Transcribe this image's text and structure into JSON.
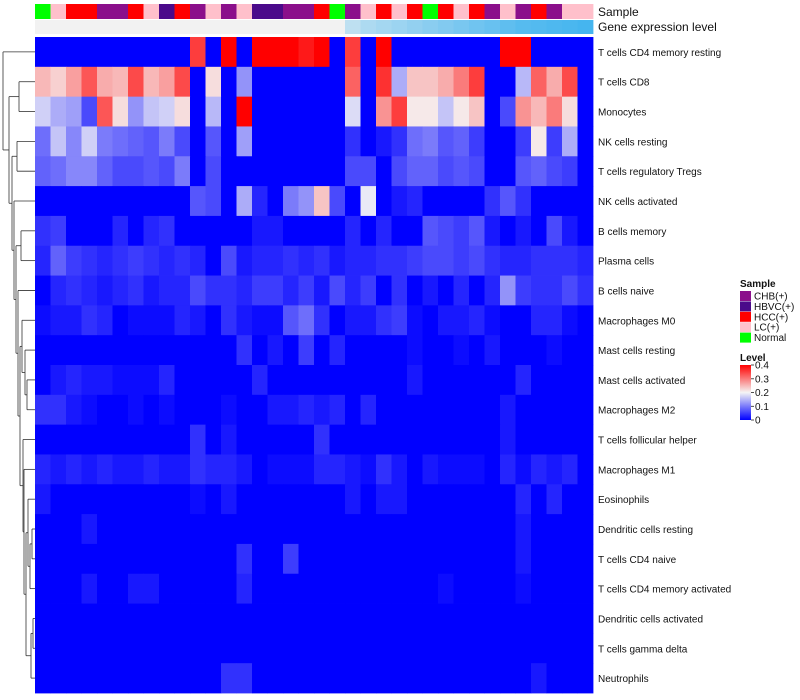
{
  "chart_data": {
    "type": "heatmap",
    "annotation_labels": {
      "sample": "Sample",
      "gene": "Gene expression level"
    },
    "rows": [
      "T cells CD4 memory resting",
      "T cells CD8",
      "Monocytes",
      "NK cells resting",
      "T cells regulatory  Tregs",
      "NK cells activated",
      "B cells memory",
      "Plasma cells",
      "B cells naive",
      "Macrophages M0",
      "Mast cells resting",
      "Mast cells activated",
      "Macrophages M2",
      "T cells follicular helper",
      "Macrophages M1",
      "Eosinophils",
      "Dendritic cells resting",
      "T cells CD4 naive",
      "T cells CD4 memory activated",
      "Dendritic cells activated",
      "T cells gamma delta",
      "Neutrophils"
    ],
    "sample_groups": [
      "Normal",
      "LC(+)",
      "HCC(+)",
      "HCC(+)",
      "CHB(+)",
      "CHB(+)",
      "HCC(+)",
      "LC(+)",
      "HBVC(+)",
      "HCC(+)",
      "CHB(+)",
      "LC(+)",
      "CHB(+)",
      "LC(+)",
      "HBVC(+)",
      "HBVC(+)",
      "CHB(+)",
      "CHB(+)",
      "HCC(+)",
      "Normal",
      "CHB(+)",
      "LC(+)",
      "HCC(+)",
      "LC(+)",
      "HCC(+)",
      "Normal",
      "HCC(+)",
      "LC(+)",
      "HCC(+)",
      "CHB(+)",
      "LC(+)",
      "CHB(+)",
      "HCC(+)",
      "CHB(+)",
      "LC(+)",
      "LC(+)"
    ],
    "gene_expression_level": [
      0,
      0,
      0,
      0,
      0,
      0,
      0,
      0,
      0,
      0,
      0,
      0,
      0,
      0,
      0,
      0,
      0,
      0,
      0,
      0,
      0.3,
      0.4,
      0.45,
      0.5,
      0.55,
      0.6,
      0.65,
      0.7,
      0.75,
      0.8,
      0.85,
      0.9,
      0.92,
      0.95,
      0.97,
      1.0
    ],
    "values": [
      [
        0.0,
        0.0,
        0.0,
        0.0,
        0.0,
        0.0,
        0.0,
        0.0,
        0.0,
        0.0,
        0.35,
        0.0,
        0.4,
        0.0,
        0.4,
        0.4,
        0.4,
        0.38,
        0.4,
        0.0,
        0.35,
        0.0,
        0.4,
        0.0,
        0.0,
        0.0,
        0.0,
        0.0,
        0.0,
        0.0,
        0.4,
        0.4,
        0.0,
        0.0,
        0.0,
        0.0
      ],
      [
        0.25,
        0.23,
        0.27,
        0.33,
        0.26,
        0.25,
        0.34,
        0.25,
        0.27,
        0.34,
        0.0,
        0.22,
        0.0,
        0.12,
        0.0,
        0.0,
        0.0,
        0.0,
        0.0,
        0.0,
        0.32,
        0.0,
        0.36,
        0.14,
        0.24,
        0.24,
        0.26,
        0.3,
        0.35,
        0.0,
        0.0,
        0.15,
        0.32,
        0.26,
        0.34,
        0.0
      ],
      [
        0.17,
        0.14,
        0.13,
        0.06,
        0.33,
        0.22,
        0.12,
        0.16,
        0.17,
        0.22,
        0.0,
        0.15,
        0.0,
        0.4,
        0.0,
        0.0,
        0.0,
        0.0,
        0.0,
        0.0,
        0.18,
        0.0,
        0.28,
        0.35,
        0.21,
        0.21,
        0.16,
        0.21,
        0.24,
        0.0,
        0.06,
        0.28,
        0.25,
        0.3,
        0.22,
        0.0
      ],
      [
        0.09,
        0.16,
        0.11,
        0.17,
        0.1,
        0.09,
        0.08,
        0.07,
        0.1,
        0.06,
        0.0,
        0.07,
        0.0,
        0.13,
        0.0,
        0.0,
        0.0,
        0.0,
        0.0,
        0.0,
        0.04,
        0.0,
        0.02,
        0.04,
        0.09,
        0.1,
        0.07,
        0.08,
        0.05,
        0.0,
        0.0,
        0.05,
        0.21,
        0.05,
        0.14,
        0.0
      ],
      [
        0.08,
        0.09,
        0.11,
        0.11,
        0.08,
        0.06,
        0.06,
        0.07,
        0.06,
        0.1,
        0.0,
        0.06,
        0.0,
        0.0,
        0.0,
        0.0,
        0.0,
        0.0,
        0.0,
        0.0,
        0.06,
        0.06,
        0.0,
        0.06,
        0.08,
        0.08,
        0.06,
        0.07,
        0.06,
        0.0,
        0.0,
        0.07,
        0.08,
        0.06,
        0.05,
        0.0
      ],
      [
        0.0,
        0.0,
        0.0,
        0.0,
        0.0,
        0.0,
        0.0,
        0.0,
        0.0,
        0.0,
        0.07,
        0.06,
        0.0,
        0.14,
        0.03,
        0.0,
        0.1,
        0.12,
        0.24,
        0.06,
        0.0,
        0.19,
        0.0,
        0.02,
        0.03,
        0.0,
        0.0,
        0.0,
        0.0,
        0.04,
        0.07,
        0.04,
        0.0,
        0.0,
        0.0,
        0.0
      ],
      [
        0.04,
        0.05,
        0.0,
        0.0,
        0.0,
        0.03,
        0.0,
        0.03,
        0.04,
        0.0,
        0.0,
        0.0,
        0.0,
        0.0,
        0.02,
        0.02,
        0.0,
        0.0,
        0.0,
        0.0,
        0.03,
        0.0,
        0.03,
        0.0,
        0.0,
        0.07,
        0.06,
        0.05,
        0.07,
        0.02,
        0.0,
        0.02,
        0.0,
        0.06,
        0.02,
        0.0
      ],
      [
        0.03,
        0.08,
        0.05,
        0.04,
        0.03,
        0.04,
        0.05,
        0.04,
        0.03,
        0.04,
        0.03,
        0.0,
        0.06,
        0.02,
        0.03,
        0.03,
        0.04,
        0.03,
        0.04,
        0.02,
        0.03,
        0.03,
        0.04,
        0.04,
        0.05,
        0.06,
        0.06,
        0.05,
        0.06,
        0.04,
        0.03,
        0.03,
        0.04,
        0.04,
        0.04,
        0.03
      ],
      [
        0.0,
        0.03,
        0.04,
        0.03,
        0.02,
        0.03,
        0.04,
        0.02,
        0.03,
        0.03,
        0.06,
        0.04,
        0.04,
        0.03,
        0.05,
        0.05,
        0.03,
        0.05,
        0.02,
        0.06,
        0.03,
        0.05,
        0.0,
        0.04,
        0.0,
        0.02,
        0.0,
        0.03,
        0.0,
        0.03,
        0.12,
        0.05,
        0.04,
        0.04,
        0.06,
        0.04
      ],
      [
        0.01,
        0.02,
        0.02,
        0.04,
        0.03,
        0.0,
        0.01,
        0.01,
        0.01,
        0.03,
        0.02,
        0.0,
        0.04,
        0.02,
        0.01,
        0.01,
        0.07,
        0.09,
        0.04,
        0.0,
        0.02,
        0.02,
        0.04,
        0.05,
        0.01,
        0.0,
        0.02,
        0.02,
        0.03,
        0.01,
        0.0,
        0.0,
        0.03,
        0.03,
        0.01,
        0.0
      ],
      [
        0.0,
        0.0,
        0.0,
        0.0,
        0.0,
        0.0,
        0.0,
        0.0,
        0.0,
        0.0,
        0.0,
        0.0,
        0.0,
        0.04,
        0.0,
        0.02,
        0.0,
        0.05,
        0.0,
        0.03,
        0.0,
        0.0,
        0.0,
        0.0,
        0.01,
        0.0,
        0.0,
        0.01,
        0.0,
        0.02,
        0.0,
        0.0,
        0.0,
        0.01,
        0.0,
        0.0
      ],
      [
        0.0,
        0.02,
        0.03,
        0.02,
        0.02,
        0.01,
        0.01,
        0.01,
        0.03,
        0.0,
        0.0,
        0.0,
        0.0,
        0.0,
        0.03,
        0.0,
        0.0,
        0.0,
        0.0,
        0.0,
        0.0,
        0.0,
        0.0,
        0.0,
        0.02,
        0.0,
        0.0,
        0.0,
        0.0,
        0.0,
        0.0,
        0.03,
        0.0,
        0.0,
        0.0,
        0.0
      ],
      [
        0.04,
        0.04,
        0.02,
        0.01,
        0.0,
        0.0,
        0.01,
        0.0,
        0.01,
        0.0,
        0.0,
        0.0,
        0.01,
        0.0,
        0.0,
        0.02,
        0.02,
        0.03,
        0.02,
        0.03,
        0.0,
        0.03,
        0.0,
        0.0,
        0.0,
        0.0,
        0.0,
        0.0,
        0.0,
        0.0,
        0.02,
        0.0,
        0.0,
        0.0,
        0.0,
        0.0
      ],
      [
        0.0,
        0.0,
        0.0,
        0.0,
        0.0,
        0.0,
        0.0,
        0.0,
        0.0,
        0.0,
        0.04,
        0.0,
        0.02,
        0.0,
        0.0,
        0.0,
        0.0,
        0.0,
        0.04,
        0.0,
        0.0,
        0.0,
        0.0,
        0.0,
        0.0,
        0.0,
        0.0,
        0.0,
        0.0,
        0.0,
        0.02,
        0.0,
        0.0,
        0.0,
        0.0,
        0.0
      ],
      [
        0.03,
        0.02,
        0.03,
        0.02,
        0.03,
        0.02,
        0.02,
        0.03,
        0.02,
        0.02,
        0.04,
        0.03,
        0.03,
        0.02,
        0.0,
        0.01,
        0.01,
        0.01,
        0.03,
        0.03,
        0.02,
        0.01,
        0.04,
        0.02,
        0.0,
        0.02,
        0.01,
        0.01,
        0.01,
        0.0,
        0.03,
        0.01,
        0.03,
        0.02,
        0.03,
        0.0
      ],
      [
        0.02,
        0.0,
        0.0,
        0.0,
        0.0,
        0.0,
        0.0,
        0.0,
        0.0,
        0.0,
        0.01,
        0.0,
        0.02,
        0.0,
        0.0,
        0.0,
        0.0,
        0.0,
        0.0,
        0.0,
        0.02,
        0.0,
        0.02,
        0.02,
        0.0,
        0.0,
        0.0,
        0.0,
        0.0,
        0.0,
        0.0,
        0.03,
        0.0,
        0.03,
        0.0,
        0.0
      ],
      [
        0.0,
        0.0,
        0.0,
        0.02,
        0.0,
        0.0,
        0.0,
        0.0,
        0.0,
        0.0,
        0.0,
        0.0,
        0.0,
        0.0,
        0.0,
        0.0,
        0.0,
        0.0,
        0.0,
        0.0,
        0.0,
        0.0,
        0.0,
        0.0,
        0.0,
        0.0,
        0.0,
        0.0,
        0.0,
        0.0,
        0.0,
        0.02,
        0.0,
        0.0,
        0.0,
        0.0
      ],
      [
        0.0,
        0.0,
        0.0,
        0.0,
        0.0,
        0.0,
        0.0,
        0.0,
        0.0,
        0.0,
        0.0,
        0.0,
        0.0,
        0.04,
        0.0,
        0.0,
        0.05,
        0.0,
        0.0,
        0.0,
        0.0,
        0.0,
        0.0,
        0.0,
        0.0,
        0.0,
        0.0,
        0.0,
        0.0,
        0.0,
        0.0,
        0.02,
        0.0,
        0.0,
        0.0,
        0.0
      ],
      [
        0.0,
        0.0,
        0.0,
        0.02,
        0.0,
        0.0,
        0.02,
        0.02,
        0.0,
        0.0,
        0.0,
        0.0,
        0.0,
        0.03,
        0.0,
        0.0,
        0.0,
        0.0,
        0.0,
        0.0,
        0.0,
        0.0,
        0.0,
        0.0,
        0.0,
        0.0,
        0.01,
        0.0,
        0.0,
        0.0,
        0.0,
        0.01,
        0.0,
        0.0,
        0.0,
        0.0
      ],
      [
        0.0,
        0.0,
        0.0,
        0.0,
        0.0,
        0.0,
        0.0,
        0.0,
        0.0,
        0.0,
        0.0,
        0.0,
        0.0,
        0.0,
        0.0,
        0.0,
        0.0,
        0.0,
        0.0,
        0.0,
        0.0,
        0.0,
        0.0,
        0.0,
        0.0,
        0.0,
        0.0,
        0.0,
        0.0,
        0.0,
        0.0,
        0.0,
        0.0,
        0.0,
        0.0,
        0.0
      ],
      [
        0.0,
        0.0,
        0.0,
        0.0,
        0.0,
        0.0,
        0.0,
        0.0,
        0.0,
        0.0,
        0.0,
        0.0,
        0.0,
        0.0,
        0.0,
        0.0,
        0.0,
        0.0,
        0.0,
        0.0,
        0.0,
        0.0,
        0.0,
        0.0,
        0.0,
        0.0,
        0.0,
        0.0,
        0.0,
        0.0,
        0.0,
        0.0,
        0.0,
        0.0,
        0.0,
        0.0
      ],
      [
        0.0,
        0.0,
        0.0,
        0.0,
        0.0,
        0.0,
        0.0,
        0.0,
        0.0,
        0.0,
        0.0,
        0.0,
        0.04,
        0.04,
        0.0,
        0.0,
        0.0,
        0.0,
        0.0,
        0.0,
        0.0,
        0.0,
        0.0,
        0.0,
        0.0,
        0.0,
        0.0,
        0.0,
        0.0,
        0.0,
        0.0,
        0.0,
        0.02,
        0.0,
        0.0,
        0.0
      ]
    ],
    "legend": {
      "sample_title": "Sample",
      "sample_entries": [
        {
          "label": "CHB(+)",
          "color": "#8b0f8b"
        },
        {
          "label": "HBVC(+)",
          "color": "#4b0a8a"
        },
        {
          "label": "HCC(+)",
          "color": "#ff0000"
        },
        {
          "label": "LC(+)",
          "color": "#ffc0cb"
        },
        {
          "label": "Normal",
          "color": "#00ff00"
        }
      ],
      "level_title": "Level",
      "level_ticks": [
        "0.4",
        "0.3",
        "0.2",
        "0.1",
        "0"
      ],
      "level_tick_values": [
        0.4,
        0.3,
        0.2,
        0.1,
        0
      ],
      "level_range": [
        0,
        0.4
      ]
    },
    "colors": {
      "low": "#0000ff",
      "mid": "#f5f5f5",
      "high": "#ff0000",
      "gene_low": "#f2f2f2",
      "gene_high": "#45b5ef"
    }
  }
}
